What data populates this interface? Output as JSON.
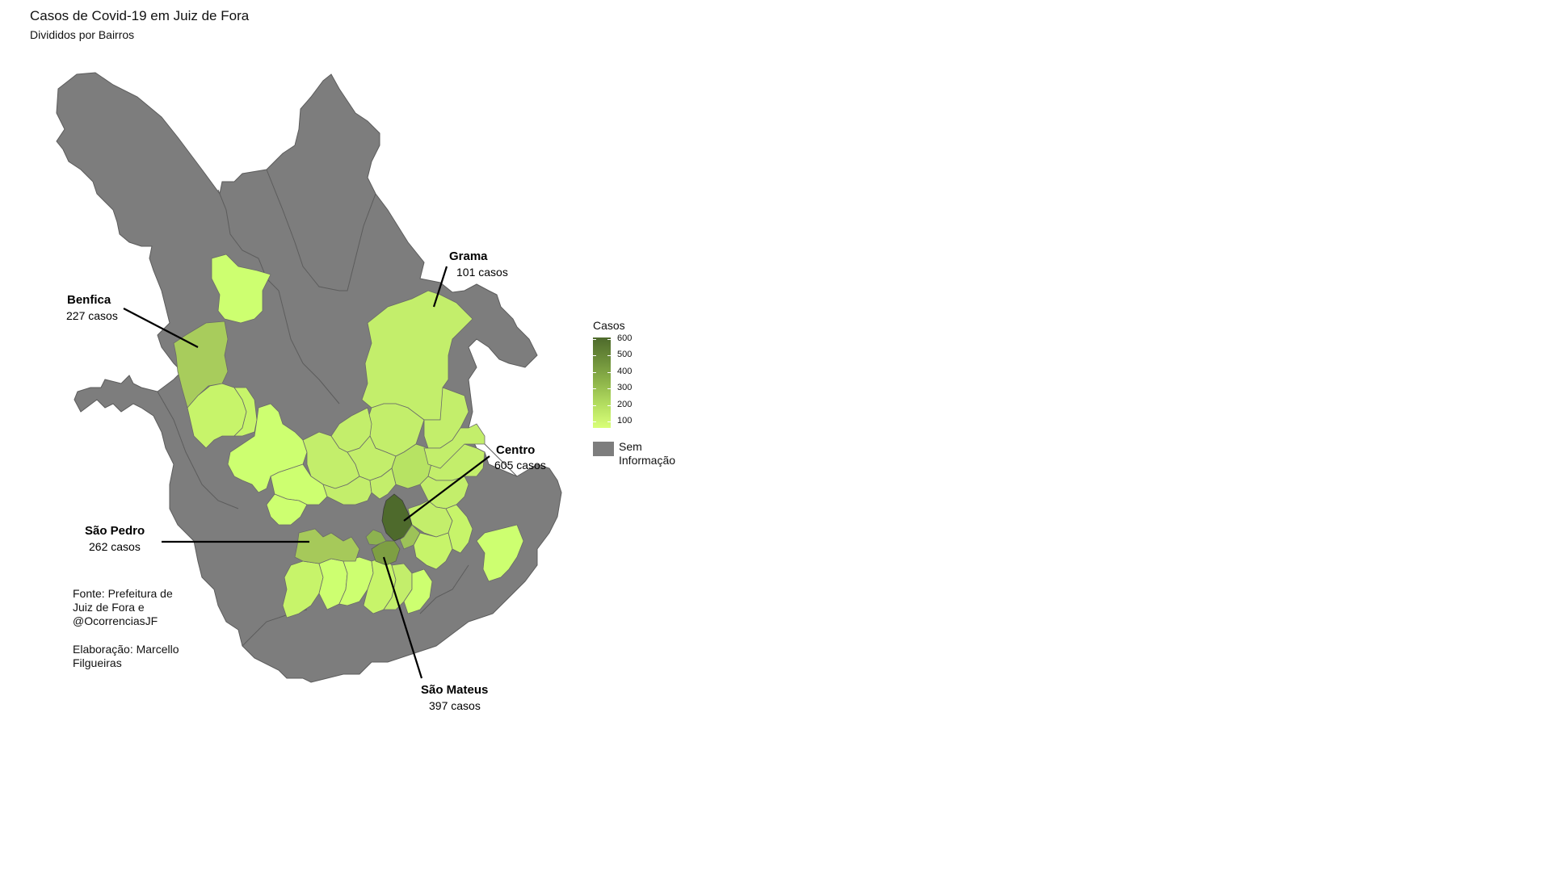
{
  "title": "Casos de Covid-19 em Juiz de Fora",
  "subtitle": "Divididos por Bairros",
  "legend": {
    "title": "Casos",
    "ticks": [
      "600",
      "500",
      "400",
      "300",
      "200",
      "100"
    ],
    "na_label": "Sem Informação",
    "scale_colors": [
      "#d9ff78",
      "#4e6a2c"
    ],
    "na_color": "#7d7d7d"
  },
  "callouts": [
    {
      "name": "Benfica",
      "count": "227 casos",
      "value": 227
    },
    {
      "name": "Grama",
      "count": "101 casos",
      "value": 101
    },
    {
      "name": "Centro",
      "count": "605 casos",
      "value": 605
    },
    {
      "name": "São Pedro",
      "count": "262 casos",
      "value": 262
    },
    {
      "name": "São Mateus",
      "count": "397 casos",
      "value": 397
    }
  ],
  "source": "Fonte: Prefeitura de Juiz de Fora e @OcorrenciasJF",
  "credit": "Elaboração: Marcello Filgueiras"
}
